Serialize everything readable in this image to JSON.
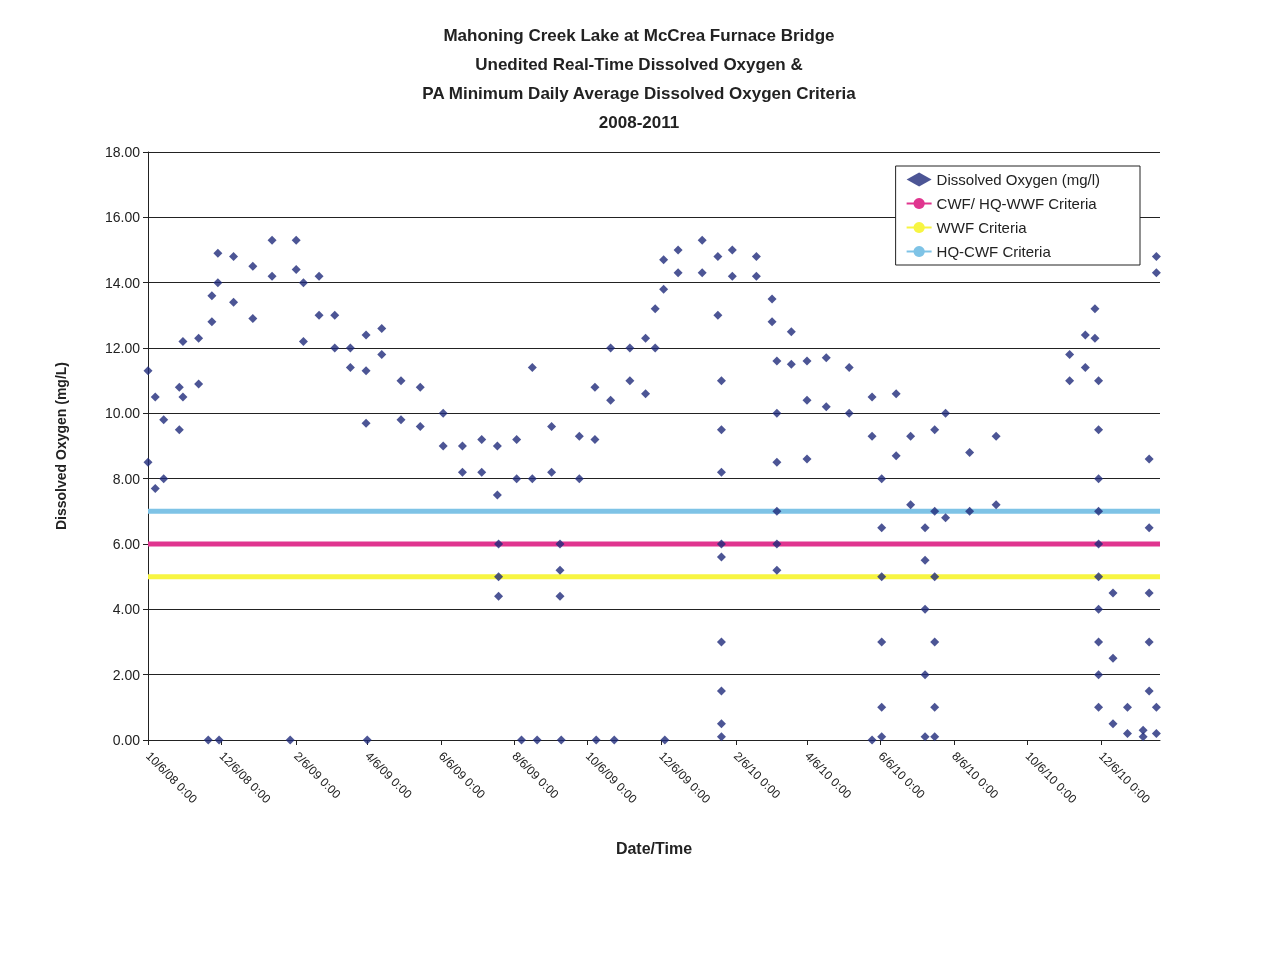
{
  "chart_data": {
    "type": "scatter",
    "title": "Mahoning Creek Lake at McCrea Furnace Bridge\nUnedited Real-Time Dissolved Oxygen &\nPA Minimum Daily Average Dissolved Oxygen Criteria\n2008-2011",
    "xlabel": "Date/Time",
    "ylabel": "Dissolved Oxygen (mg/L)",
    "xlim": [
      "2008-10-06T00:00",
      "2011-01-24T00:00"
    ],
    "xticks": [
      {
        "value": "2008-10-06T00:00",
        "label": "10/6/08 0:00"
      },
      {
        "value": "2008-12-06T00:00",
        "label": "12/6/08 0:00"
      },
      {
        "value": "2009-02-06T00:00",
        "label": "2/6/09 0:00"
      },
      {
        "value": "2009-04-06T00:00",
        "label": "4/6/09 0:00"
      },
      {
        "value": "2009-06-06T00:00",
        "label": "6/6/09 0:00"
      },
      {
        "value": "2009-08-06T00:00",
        "label": "8/6/09 0:00"
      },
      {
        "value": "2009-10-06T00:00",
        "label": "10/6/09 0:00"
      },
      {
        "value": "2009-12-06T00:00",
        "label": "12/6/09 0:00"
      },
      {
        "value": "2010-02-06T00:00",
        "label": "2/6/10 0:00"
      },
      {
        "value": "2010-04-06T00:00",
        "label": "4/6/10 0:00"
      },
      {
        "value": "2010-06-06T00:00",
        "label": "6/6/10 0:00"
      },
      {
        "value": "2010-08-06T00:00",
        "label": "8/6/10 0:00"
      },
      {
        "value": "2010-10-06T00:00",
        "label": "10/6/10 0:00"
      },
      {
        "value": "2010-12-06T00:00",
        "label": "12/6/10 0:00"
      }
    ],
    "ylim": [
      0,
      18
    ],
    "yticks": [
      {
        "value": 0,
        "label": "0.00"
      },
      {
        "value": 2,
        "label": "2.00"
      },
      {
        "value": 4,
        "label": "4.00"
      },
      {
        "value": 6,
        "label": "6.00"
      },
      {
        "value": 8,
        "label": "8.00"
      },
      {
        "value": 10,
        "label": "10.00"
      },
      {
        "value": 12,
        "label": "12.00"
      },
      {
        "value": 14,
        "label": "14.00"
      },
      {
        "value": 16,
        "label": "16.00"
      },
      {
        "value": 18,
        "label": "18.00"
      }
    ],
    "grid": "y",
    "legend": "top right",
    "marker": "diamond",
    "series": [
      {
        "name": "Dissolved Oxygen (mg/l)",
        "color": "#1f2a7a",
        "x": [
          "2008-10-06",
          "2008-10-06",
          "2008-10-12",
          "2008-10-12",
          "2008-10-19",
          "2008-10-19",
          "2008-11-01",
          "2008-11-01",
          "2008-11-04",
          "2008-11-04",
          "2008-11-17",
          "2008-11-17",
          "2008-11-25",
          "2008-11-28",
          "2008-11-28",
          "2008-12-03",
          "2008-12-03",
          "2008-12-04",
          "2008-12-16",
          "2008-12-16",
          "2009-01-01",
          "2009-01-01",
          "2009-01-17",
          "2009-01-17",
          "2009-02-01",
          "2009-02-06",
          "2009-02-06",
          "2009-02-12",
          "2009-02-12",
          "2009-02-25",
          "2009-02-25",
          "2009-03-10",
          "2009-03-10",
          "2009-03-23",
          "2009-03-23",
          "2009-04-05",
          "2009-04-05",
          "2009-04-05",
          "2009-04-06",
          "2009-04-18",
          "2009-04-18",
          "2009-05-04",
          "2009-05-04",
          "2009-05-20",
          "2009-05-20",
          "2009-06-08",
          "2009-06-08",
          "2009-06-24",
          "2009-06-24",
          "2009-07-10",
          "2009-07-10",
          "2009-07-23",
          "2009-07-23",
          "2009-07-24",
          "2009-07-24",
          "2009-07-24",
          "2009-08-08",
          "2009-08-08",
          "2009-08-12",
          "2009-08-21",
          "2009-08-21",
          "2009-08-25",
          "2009-09-06",
          "2009-09-06",
          "2009-09-13",
          "2009-09-13",
          "2009-09-13",
          "2009-09-14",
          "2009-09-29",
          "2009-09-29",
          "2009-10-12",
          "2009-10-12",
          "2009-10-13",
          "2009-10-25",
          "2009-10-25",
          "2009-10-28",
          "2009-11-10",
          "2009-11-10",
          "2009-11-23",
          "2009-11-23",
          "2009-12-01",
          "2009-12-01",
          "2009-12-08",
          "2009-12-08",
          "2009-12-09",
          "2009-12-20",
          "2009-12-20",
          "2010-01-09",
          "2010-01-09",
          "2010-01-22",
          "2010-01-22",
          "2010-01-25",
          "2010-01-25",
          "2010-01-25",
          "2010-01-25",
          "2010-01-25",
          "2010-01-25",
          "2010-01-25",
          "2010-01-25",
          "2010-01-25",
          "2010-02-03",
          "2010-02-03",
          "2010-02-23",
          "2010-02-23",
          "2010-03-08",
          "2010-03-08",
          "2010-03-12",
          "2010-03-12",
          "2010-03-12",
          "2010-03-12",
          "2010-03-12",
          "2010-03-12",
          "2010-03-24",
          "2010-03-24",
          "2010-04-06",
          "2010-04-06",
          "2010-04-06",
          "2010-04-22",
          "2010-04-22",
          "2010-05-11",
          "2010-05-11",
          "2010-05-30",
          "2010-05-30",
          "2010-05-30",
          "2010-06-07",
          "2010-06-07",
          "2010-06-07",
          "2010-06-07",
          "2010-06-07",
          "2010-06-07",
          "2010-06-19",
          "2010-06-19",
          "2010-07-01",
          "2010-07-01",
          "2010-07-13",
          "2010-07-13",
          "2010-07-13",
          "2010-07-13",
          "2010-07-13",
          "2010-07-21",
          "2010-07-21",
          "2010-07-21",
          "2010-07-21",
          "2010-07-21",
          "2010-07-21",
          "2010-07-30",
          "2010-07-30",
          "2010-08-19",
          "2010-08-19",
          "2010-09-10",
          "2010-09-10",
          "2010-11-10",
          "2010-11-10",
          "2010-11-23",
          "2010-11-23",
          "2010-12-01",
          "2010-12-01",
          "2010-12-04",
          "2010-12-04",
          "2010-12-04",
          "2010-12-04",
          "2010-12-04",
          "2010-12-04",
          "2010-12-04",
          "2010-12-04",
          "2010-12-04",
          "2010-12-04",
          "2010-12-16",
          "2010-12-16",
          "2010-12-16",
          "2010-12-28",
          "2010-12-28",
          "2011-01-10",
          "2011-01-10",
          "2011-01-15",
          "2011-01-15",
          "2011-01-15",
          "2011-01-15",
          "2011-01-15",
          "2011-01-21",
          "2011-01-21",
          "2011-01-21",
          "2011-01-21"
        ],
        "values": [
          11.3,
          8.5,
          10.5,
          7.7,
          9.8,
          8.0,
          10.8,
          9.5,
          12.2,
          10.5,
          12.3,
          10.9,
          0,
          13.6,
          12.8,
          14.9,
          14.0,
          0,
          14.8,
          13.4,
          14.5,
          12.9,
          15.3,
          14.2,
          0,
          15.3,
          14.4,
          14.0,
          12.2,
          14.2,
          13.0,
          13.0,
          12.0,
          12.0,
          11.4,
          12.4,
          11.3,
          9.7,
          0,
          12.6,
          11.8,
          11.0,
          9.8,
          10.8,
          9.6,
          10.0,
          9.0,
          9.0,
          8.2,
          9.2,
          8.2,
          9.0,
          7.5,
          6.0,
          5.0,
          4.4,
          9.2,
          8.0,
          0,
          11.4,
          8.0,
          0,
          9.6,
          8.2,
          6.0,
          5.2,
          4.4,
          0,
          9.3,
          8.0,
          10.8,
          9.2,
          0,
          12.0,
          10.4,
          0,
          12.0,
          11.0,
          12.3,
          10.6,
          13.2,
          12.0,
          14.7,
          13.8,
          0,
          15.0,
          14.3,
          15.3,
          14.3,
          14.8,
          13.0,
          11.0,
          9.5,
          8.2,
          6.0,
          5.6,
          3.0,
          1.5,
          0.5,
          0.1,
          15.0,
          14.2,
          14.8,
          14.2,
          13.5,
          12.8,
          11.6,
          10.0,
          8.5,
          7.0,
          6.0,
          5.2,
          12.5,
          11.5,
          11.6,
          10.4,
          8.6,
          11.7,
          10.2,
          11.4,
          10.0,
          10.5,
          9.3,
          0,
          8.0,
          6.5,
          5.0,
          3.0,
          1.0,
          0.1,
          10.6,
          8.7,
          9.3,
          7.2,
          6.5,
          5.5,
          4.0,
          2.0,
          0.1,
          9.5,
          7.0,
          5.0,
          3.0,
          1.0,
          0.1,
          10.0,
          6.8,
          8.8,
          7.0,
          9.3,
          7.2,
          11.8,
          11.0,
          12.4,
          11.4,
          13.2,
          12.3,
          11.0,
          9.5,
          8.0,
          7.0,
          6.0,
          5.0,
          4.0,
          3.0,
          2.0,
          1.0,
          4.5,
          2.5,
          0.5,
          1.0,
          0.2,
          0.3,
          0.1,
          8.6,
          6.5,
          4.5,
          3.0,
          1.5,
          14.8,
          14.3,
          1.0,
          0.2
        ]
      },
      {
        "name": "CWF/ HQ-WWF Criteria",
        "type": "line",
        "marker": "none",
        "color": "#e0358f",
        "x": [
          "2008-10-06",
          "2011-01-24"
        ],
        "values": [
          6,
          6
        ]
      },
      {
        "name": "WWF Criteria",
        "type": "line",
        "marker": "none",
        "color": "#f7f542",
        "x": [
          "2008-10-06",
          "2011-01-24"
        ],
        "values": [
          5,
          5
        ]
      },
      {
        "name": "HQ-CWF Criteria",
        "type": "line",
        "marker": "none",
        "color": "#7ec3e6",
        "x": [
          "2008-10-06",
          "2011-01-24"
        ],
        "values": [
          7,
          7
        ]
      }
    ]
  }
}
